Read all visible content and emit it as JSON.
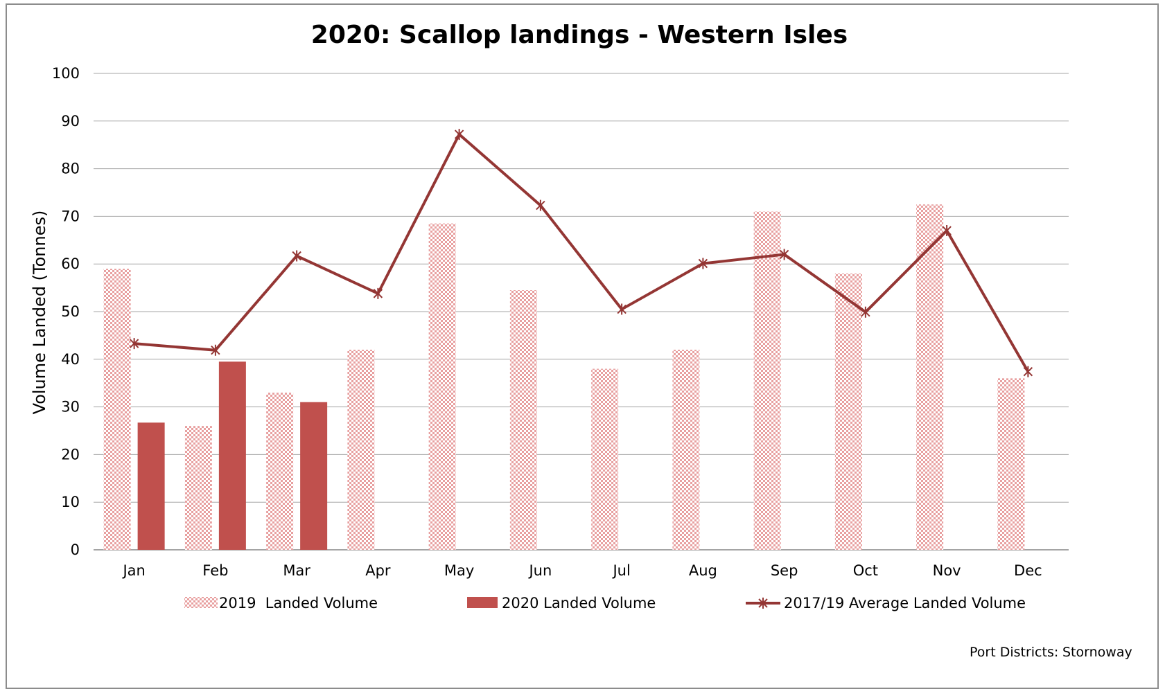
{
  "chart_data": {
    "type": "bar",
    "title": "2020: Scallop landings - Western Isles",
    "xlabel": "",
    "ylabel": "Volume Landed (Tonnes)",
    "ylim": [
      0,
      100
    ],
    "yticks": [
      0,
      10,
      20,
      30,
      40,
      50,
      60,
      70,
      80,
      90,
      100
    ],
    "grid": true,
    "legend_position": "bottom",
    "categories": [
      "Jan",
      "Feb",
      "Mar",
      "Apr",
      "May",
      "Jun",
      "Jul",
      "Aug",
      "Sep",
      "Oct",
      "Nov",
      "Dec"
    ],
    "series": [
      {
        "name": "2019  Landed Volume",
        "type": "bar",
        "style": "checkered",
        "color": "#e8a0a0",
        "values": [
          59,
          26,
          33,
          42,
          68.5,
          54.5,
          38,
          42,
          71,
          58,
          72.5,
          36
        ]
      },
      {
        "name": "2020 Landed Volume",
        "type": "bar",
        "style": "solid",
        "color": "#c0504d",
        "values": [
          26.7,
          39.5,
          31,
          null,
          null,
          null,
          null,
          null,
          null,
          null,
          null,
          null
        ]
      },
      {
        "name": "2017/19 Average Landed Volume",
        "type": "line",
        "marker": "star",
        "color": "#943634",
        "values": [
          43.3,
          41.9,
          61.7,
          53.8,
          87.2,
          72.3,
          50.5,
          60.1,
          62,
          49.9,
          67,
          37.4
        ]
      }
    ],
    "footnote_label": "Port Districts:",
    "footnote_value": "Stornoway"
  }
}
